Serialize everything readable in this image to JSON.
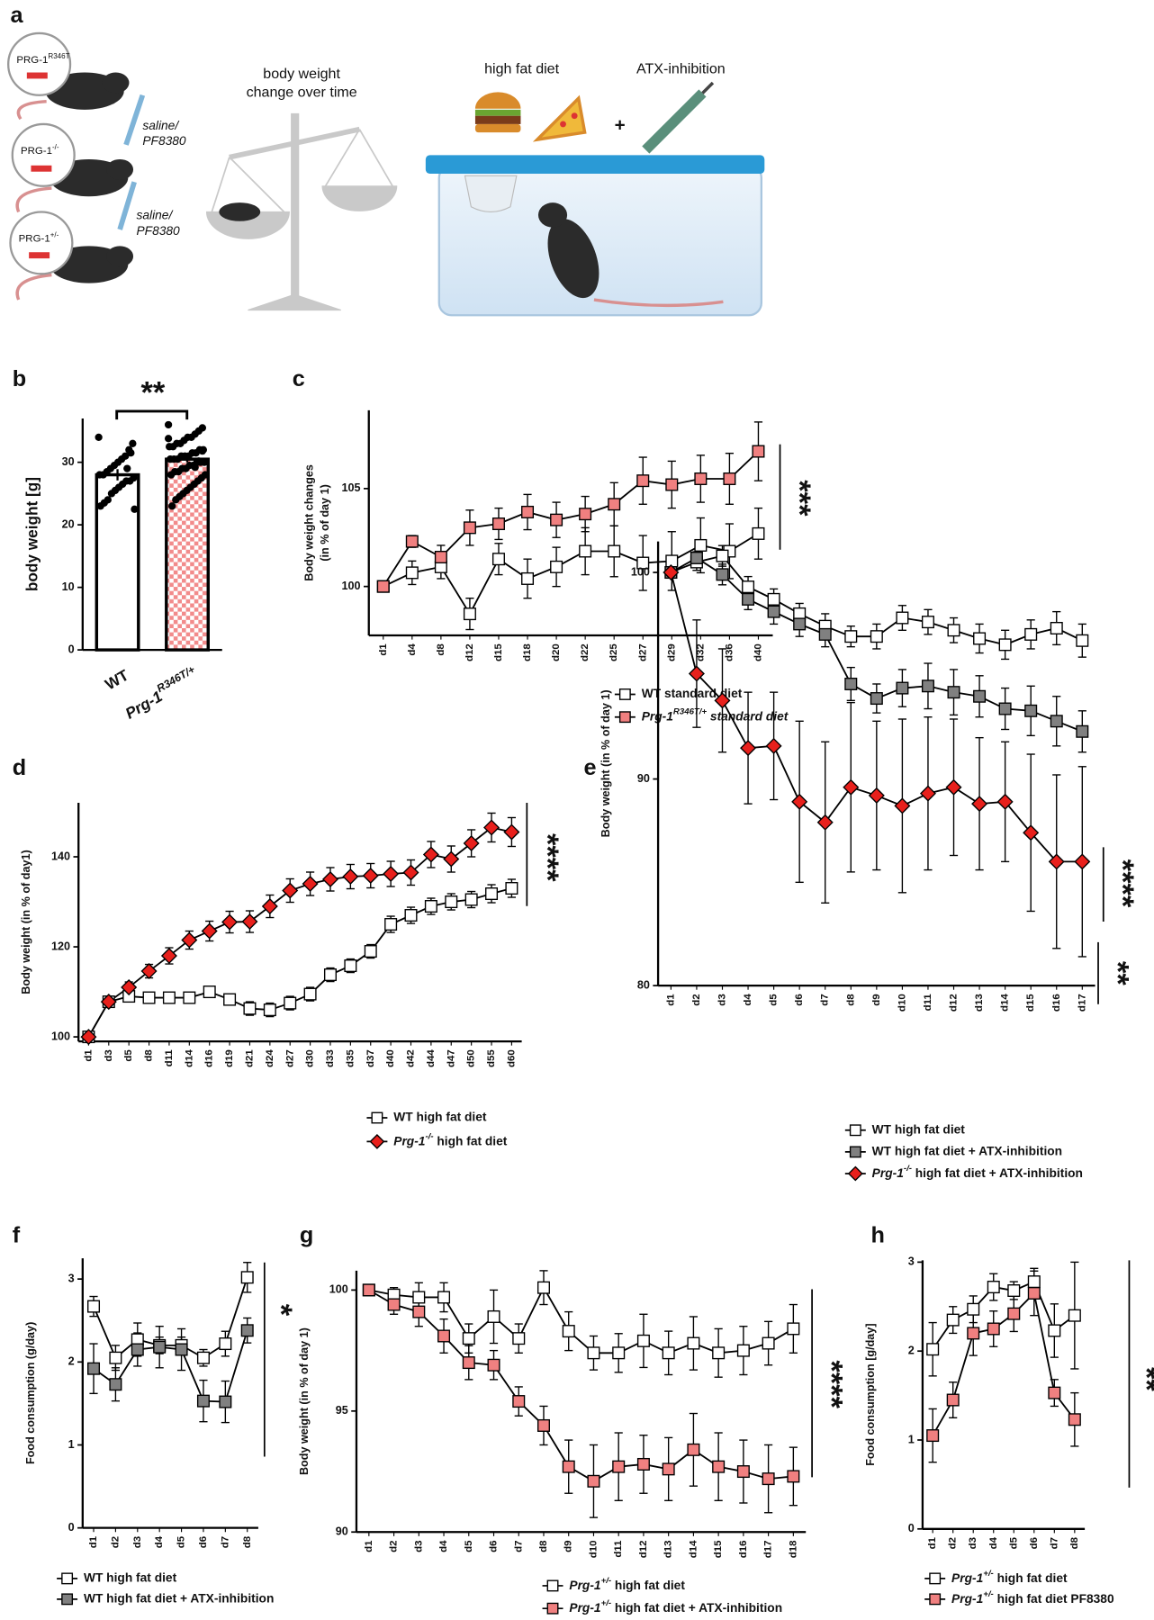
{
  "panel_a": {
    "panel": "a",
    "genotypes": [
      [
        {
          "text": "PRG-1"
        },
        {
          "text": "R346T",
          "sup": true
        }
      ],
      [
        {
          "text": "PRG-1"
        },
        {
          "text": "-/-",
          "sup": true
        }
      ],
      [
        {
          "text": "PRG-1"
        },
        {
          "text": "+/-",
          "sup": true
        }
      ]
    ],
    "injections": [
      [
        "saline/",
        "PF8380"
      ],
      [
        "saline/",
        "PF8380"
      ]
    ],
    "scale_label": [
      "body weight",
      "change over time"
    ],
    "diet_label": "high fat diet",
    "plus": "+",
    "inhibition_label": "ATX-inhibition"
  },
  "chart_data": [
    {
      "panel": "b",
      "type": "bar",
      "ylabel": "body weight [g]",
      "categories": [
        "WT",
        [
          {
            "text": "Prg-1",
            "italic": true
          },
          {
            "text": "R346T/+",
            "sup": true,
            "italic": true
          }
        ]
      ],
      "values": [
        28,
        30.5
      ],
      "errors": [
        0.9,
        0.5
      ],
      "colors": [
        "#ffffff",
        "#f28b8b"
      ],
      "points": [
        [
          34,
          33,
          32,
          31,
          30.5,
          30,
          29.5,
          29,
          28.5,
          28,
          28,
          27.5,
          27,
          27,
          26.5,
          26,
          25.5,
          25,
          24,
          23.5,
          23,
          22.5,
          31.5,
          29
        ],
        [
          36,
          35.5,
          35,
          34.5,
          34,
          34,
          33.5,
          33,
          33,
          32.5,
          32.5,
          32,
          32,
          31.5,
          31.5,
          31,
          31,
          31,
          30.5,
          30.5,
          30.5,
          30,
          30,
          30,
          29.5,
          29.5,
          29,
          29,
          28.5,
          28.5,
          28,
          28,
          27.5,
          27,
          26.5,
          26,
          25.5,
          25,
          24.5,
          24,
          23,
          33.8,
          31.8,
          30.2,
          29.2
        ]
      ],
      "ylim": [
        0,
        37
      ],
      "yticks": [
        0,
        10,
        20,
        30
      ],
      "annotations": [
        {
          "text": "**"
        }
      ]
    },
    {
      "panel": "c",
      "type": "line",
      "ylabel": [
        "Body weight changes",
        "(in % of day 1)"
      ],
      "categories": [
        "d1",
        "d4",
        "d8",
        "d12",
        "d15",
        "d18",
        "d20",
        "d22",
        "d25",
        "d27",
        "d29",
        "d32",
        "d36",
        "d40"
      ],
      "series": [
        {
          "name": "WT standard diet",
          "color": "#ffffff",
          "marker": "square",
          "values": [
            100,
            100.7,
            101.0,
            98.6,
            101.4,
            100.4,
            101.0,
            101.8,
            101.8,
            101.2,
            101.3,
            102.1,
            101.8,
            102.7
          ],
          "errors": [
            0,
            0.6,
            0.6,
            0.8,
            0.8,
            1.0,
            1.0,
            1.2,
            1.3,
            1.4,
            1.5,
            1.4,
            1.4,
            1.3
          ]
        },
        {
          "name": [
            {
              "text": "Prg-1",
              "italic": true
            },
            {
              "text": "R346T/+",
              "sup": true,
              "italic": true
            },
            {
              "text": " standard diet",
              "italic": true
            }
          ],
          "color": "#f08080",
          "marker": "square",
          "values": [
            100,
            102.3,
            101.5,
            103.0,
            103.2,
            103.8,
            103.4,
            103.7,
            104.2,
            105.4,
            105.2,
            105.5,
            105.5,
            106.9
          ],
          "errors": [
            0,
            0.3,
            0.6,
            0.9,
            0.8,
            0.9,
            0.9,
            0.9,
            1.1,
            1.2,
            1.2,
            1.2,
            1.3,
            1.5
          ]
        }
      ],
      "ylim": [
        97.5,
        109
      ],
      "yticks": [
        100,
        105
      ],
      "annotations": [
        {
          "text": "***"
        }
      ]
    },
    {
      "panel": "d",
      "type": "line",
      "ylabel": "Body weight (in % of day1)",
      "categories": [
        "d1",
        "d3",
        "d5",
        "d8",
        "d11",
        "d14",
        "d16",
        "d19",
        "d21",
        "d24",
        "d27",
        "d30",
        "d33",
        "d35",
        "d37",
        "d40",
        "d42",
        "d44",
        "d47",
        "d50",
        "d55",
        "d60"
      ],
      "series": [
        {
          "name": "WT high fat diet",
          "color": "#ffffff",
          "marker": "square",
          "values": [
            100,
            107.8,
            109,
            108.7,
            108.7,
            108.7,
            110,
            108.3,
            106.3,
            106,
            107.5,
            109.5,
            113.8,
            115.8,
            119,
            125,
            127,
            129,
            130,
            130.5,
            131.8,
            133
          ],
          "errors": [
            0,
            0.8,
            0.8,
            0.8,
            0.8,
            0.8,
            0.9,
            1.0,
            1.5,
            1.5,
            1.5,
            1.5,
            1.5,
            1.5,
            1.5,
            1.8,
            1.8,
            1.8,
            1.8,
            1.8,
            2.0,
            2.0
          ]
        },
        {
          "name": [
            {
              "text": "Prg-1",
              "italic": true
            },
            {
              "text": "-/-",
              "sup": true,
              "italic": true
            },
            {
              "text": " high fat diet"
            }
          ],
          "color": "#e8201c",
          "marker": "diamond",
          "values": [
            100,
            107.8,
            111,
            114.6,
            118,
            121.5,
            123.5,
            125.5,
            125.6,
            129,
            132.5,
            134,
            135,
            135.6,
            135.8,
            136.2,
            136.5,
            140.5,
            139.5,
            143,
            146.5,
            145.5
          ],
          "errors": [
            0,
            0.8,
            1.2,
            1.5,
            1.8,
            2.0,
            2.2,
            2.4,
            2.4,
            2.5,
            2.6,
            2.6,
            2.6,
            2.7,
            2.7,
            2.8,
            2.8,
            2.9,
            2.9,
            3.0,
            3.2,
            3.2
          ]
        }
      ],
      "ylim": [
        99,
        152
      ],
      "yticks": [
        100,
        120,
        140
      ],
      "annotations": [
        {
          "text": "****"
        }
      ]
    },
    {
      "panel": "e",
      "type": "line",
      "ylabel": "Body weight (in % of day 1)",
      "categories": [
        "d1",
        "d2",
        "d3",
        "d4",
        "d5",
        "d6",
        "d7",
        "d8",
        "d9",
        "d10",
        "d11",
        "d12",
        "d13",
        "d14",
        "d15",
        "d16",
        "d17"
      ],
      "series": [
        {
          "name": "WT high fat diet",
          "color": "#ffffff",
          "marker": "square",
          "values": [
            100,
            100.5,
            100.8,
            99.3,
            98.7,
            98.0,
            97.4,
            96.9,
            96.9,
            97.8,
            97.6,
            97.2,
            96.8,
            96.5,
            97.0,
            97.3,
            96.7
          ],
          "errors": [
            0,
            0.4,
            0.5,
            0.5,
            0.5,
            0.5,
            0.6,
            0.5,
            0.6,
            0.6,
            0.6,
            0.6,
            0.7,
            0.7,
            0.7,
            0.8,
            0.8
          ]
        },
        {
          "name": "WT high fat diet + ATX-inhibition",
          "color": "#808080",
          "marker": "square",
          "values": [
            100,
            100.7,
            99.9,
            98.7,
            98.1,
            97.5,
            97.0,
            94.6,
            93.9,
            94.4,
            94.5,
            94.2,
            94.0,
            93.4,
            93.3,
            92.8,
            92.3
          ],
          "errors": [
            0,
            0.3,
            0.5,
            0.5,
            0.6,
            0.6,
            0.6,
            0.8,
            0.7,
            0.9,
            1.1,
            1.1,
            1.0,
            1.0,
            1.2,
            1.2,
            1.0
          ]
        },
        {
          "name": [
            {
              "text": "Prg-1",
              "italic": true
            },
            {
              "text": "-/-",
              "sup": true,
              "italic": true
            },
            {
              "text": " high fat diet + ATX-inhibition"
            }
          ],
          "color": "#e8201c",
          "marker": "diamond",
          "values": [
            100,
            95.1,
            93.8,
            91.5,
            91.6,
            88.9,
            87.9,
            89.6,
            89.2,
            88.7,
            89.3,
            89.6,
            88.8,
            88.9,
            87.4,
            86.0,
            86.0
          ],
          "errors": [
            0,
            2.6,
            2.5,
            2.7,
            2.6,
            3.9,
            3.9,
            4.1,
            3.6,
            4.2,
            3.7,
            3.3,
            3.2,
            2.9,
            3.8,
            4.2,
            4.6
          ]
        }
      ],
      "ylim": [
        80,
        101.5
      ],
      "yticks": [
        80,
        90,
        100
      ],
      "annotations": [
        {
          "text": "****"
        },
        {
          "text": "**"
        }
      ]
    },
    {
      "panel": "f",
      "type": "line",
      "ylabel": "Food consumption (g/day)",
      "categories": [
        "d1",
        "d2",
        "d3",
        "d4",
        "d5",
        "d6",
        "d7",
        "d8"
      ],
      "series": [
        {
          "name": "WT high fat diet",
          "color": "#ffffff",
          "marker": "square",
          "values": [
            2.67,
            2.05,
            2.27,
            2.2,
            2.2,
            2.05,
            2.22,
            3.02
          ],
          "errors": [
            0.12,
            0.15,
            0.2,
            0.1,
            0.1,
            0.1,
            0.15,
            0.18
          ]
        },
        {
          "name": "WT high fat diet + ATX-inhibition",
          "color": "#808080",
          "marker": "square",
          "values": [
            1.92,
            1.73,
            2.15,
            2.18,
            2.15,
            1.53,
            1.52,
            2.38
          ],
          "errors": [
            0.3,
            0.2,
            0.2,
            0.25,
            0.25,
            0.25,
            0.25,
            0.15
          ]
        }
      ],
      "ylim": [
        0,
        3.25
      ],
      "yticks": [
        0,
        1,
        2,
        3
      ],
      "annotations": [
        {
          "text": "*"
        }
      ]
    },
    {
      "panel": "g",
      "type": "line",
      "ylabel": "Body weight (in % of day 1)",
      "categories": [
        "d1",
        "d2",
        "d3",
        "d4",
        "d5",
        "d6",
        "d7",
        "d8",
        "d9",
        "d10",
        "d11",
        "d12",
        "d13",
        "d14",
        "d15",
        "d16",
        "d17",
        "d18"
      ],
      "series": [
        {
          "name": [
            {
              "text": "Prg-1",
              "italic": true
            },
            {
              "text": "+/-",
              "sup": true,
              "italic": true
            },
            {
              "text": " high fat diet"
            }
          ],
          "color": "#ffffff",
          "marker": "square",
          "values": [
            100,
            99.8,
            99.7,
            99.7,
            98.0,
            98.9,
            98.0,
            100.1,
            98.3,
            97.4,
            97.4,
            97.9,
            97.4,
            97.8,
            97.4,
            97.5,
            97.8,
            98.4
          ],
          "errors": [
            0.2,
            0.3,
            0.6,
            0.6,
            0.6,
            1.1,
            0.6,
            0.7,
            0.8,
            0.7,
            0.8,
            1.1,
            0.9,
            1.1,
            1.0,
            1.0,
            0.9,
            1.0
          ]
        },
        {
          "name": [
            {
              "text": "Prg-1",
              "italic": true
            },
            {
              "text": "+/-",
              "sup": true,
              "italic": true
            },
            {
              "text": " high fat diet + ATX-inhibition"
            }
          ],
          "color": "#f08080",
          "marker": "square",
          "values": [
            100,
            99.4,
            99.1,
            98.1,
            97.0,
            96.9,
            95.4,
            94.4,
            92.7,
            92.1,
            92.7,
            92.8,
            92.6,
            93.4,
            92.7,
            92.5,
            92.2,
            92.3
          ],
          "errors": [
            0.2,
            0.4,
            0.6,
            0.7,
            0.7,
            0.6,
            0.6,
            0.8,
            1.1,
            1.5,
            1.4,
            1.2,
            1.3,
            1.5,
            1.4,
            1.3,
            1.4,
            1.2
          ]
        }
      ],
      "ylim": [
        90,
        100.8
      ],
      "yticks": [
        90,
        95,
        100
      ],
      "annotations": [
        {
          "text": "****"
        }
      ]
    },
    {
      "panel": "h",
      "type": "line",
      "ylabel": "Food consumption [g/day]",
      "categories": [
        "d1",
        "d2",
        "d3",
        "d4",
        "d5",
        "d6",
        "d7",
        "d8"
      ],
      "series": [
        {
          "name": [
            {
              "text": "Prg-1",
              "italic": true
            },
            {
              "text": "+/-",
              "sup": true,
              "italic": true
            },
            {
              "text": " high fat diet"
            }
          ],
          "color": "#ffffff",
          "marker": "square",
          "values": [
            2.02,
            2.35,
            2.47,
            2.72,
            2.68,
            2.78,
            2.23,
            2.4
          ],
          "errors": [
            0.3,
            0.15,
            0.15,
            0.15,
            0.1,
            0.15,
            0.3,
            0.6
          ]
        },
        {
          "name": [
            {
              "text": "Prg-1",
              "italic": true
            },
            {
              "text": "+/-",
              "sup": true,
              "italic": true
            },
            {
              "text": " high fat diet PF8380"
            }
          ],
          "color": "#f08080",
          "marker": "square",
          "values": [
            1.05,
            1.45,
            2.2,
            2.25,
            2.42,
            2.65,
            1.53,
            1.23
          ],
          "errors": [
            0.3,
            0.2,
            0.25,
            0.2,
            0.2,
            0.25,
            0.15,
            0.3
          ]
        }
      ],
      "ylim": [
        0,
        3.02
      ],
      "yticks": [
        0,
        1,
        2,
        3
      ],
      "annotations": [
        {
          "text": "**"
        }
      ]
    }
  ]
}
